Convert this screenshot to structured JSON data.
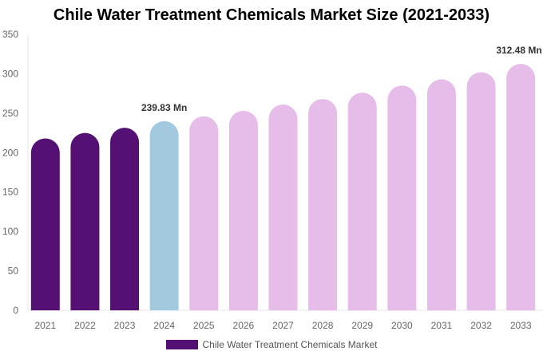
{
  "chart_data": {
    "type": "bar",
    "title": "Chile Water Treatment Chemicals Market Size (2021-2033)",
    "categories": [
      "2021",
      "2022",
      "2023",
      "2024",
      "2025",
      "2026",
      "2027",
      "2028",
      "2029",
      "2030",
      "2031",
      "2032",
      "2033"
    ],
    "series": [
      {
        "name": "Chile Water Treatment Chemicals Market",
        "values": [
          218,
          225,
          231.5,
          239.83,
          246,
          253,
          261,
          268,
          276,
          285,
          293,
          302,
          312.48
        ]
      }
    ],
    "data_labels": {
      "3": "239.83 Mn",
      "12": "312.48 Mn"
    },
    "ylim": [
      0,
      350
    ],
    "yticks": [
      0,
      50,
      100,
      150,
      200,
      250,
      300,
      350
    ],
    "grid": false,
    "legend": "bottom",
    "colors": {
      "historical": "#541173",
      "current": "#a3c9de",
      "forecast": "#e6bce9"
    }
  }
}
